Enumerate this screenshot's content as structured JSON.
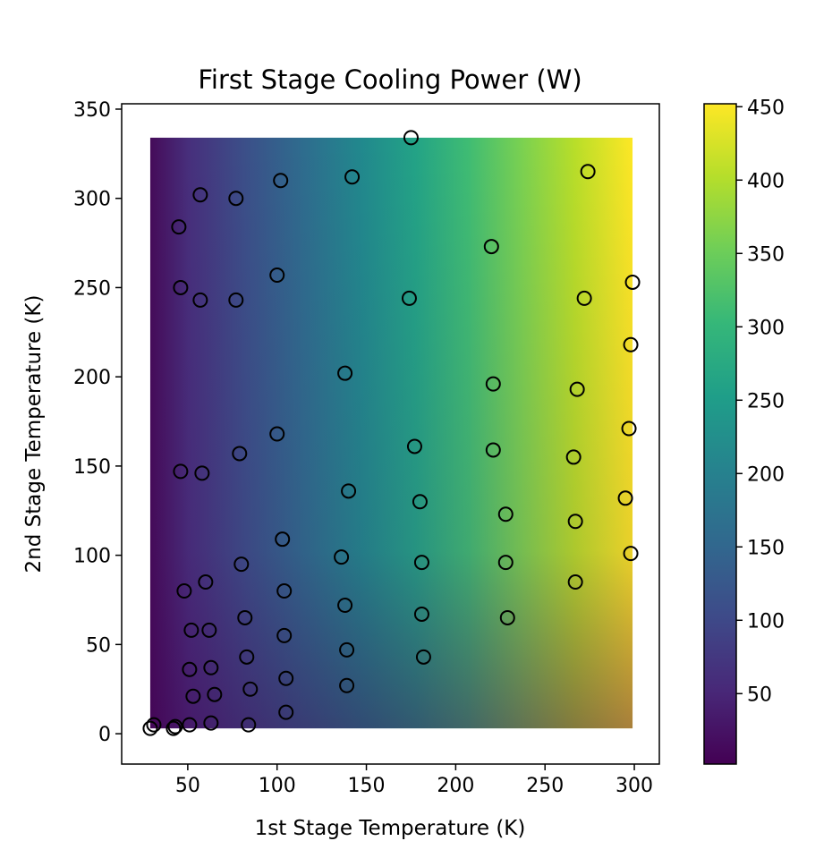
{
  "chart_data": {
    "type": "scatter",
    "title": "First Stage Cooling Power (W)",
    "xlabel": "1st Stage Temperature (K)",
    "ylabel": "2nd Stage Temperature (K)",
    "xlim": [
      13,
      314
    ],
    "ylim": [
      -17,
      353
    ],
    "xticks": [
      "50",
      "100",
      "150",
      "200",
      "250",
      "300"
    ],
    "yticks": [
      "0",
      "50",
      "100",
      "150",
      "200",
      "250",
      "300",
      "350"
    ],
    "contour": {
      "x_range": [
        29,
        299
      ],
      "y_range": [
        3,
        334
      ],
      "colormap": "viridis"
    },
    "colorbar": {
      "range": [
        2,
        452
      ],
      "ticks": [
        "50",
        "100",
        "150",
        "200",
        "250",
        "300",
        "350",
        "400",
        "450"
      ]
    },
    "marker_style": {
      "edge_color": "#000000",
      "fill": "none"
    },
    "points": [
      {
        "x": 175,
        "y": 334
      },
      {
        "x": 274,
        "y": 315
      },
      {
        "x": 142,
        "y": 312
      },
      {
        "x": 102,
        "y": 310
      },
      {
        "x": 57,
        "y": 302
      },
      {
        "x": 77,
        "y": 300
      },
      {
        "x": 45,
        "y": 284
      },
      {
        "x": 220,
        "y": 273
      },
      {
        "x": 100,
        "y": 257
      },
      {
        "x": 299,
        "y": 253
      },
      {
        "x": 46,
        "y": 250
      },
      {
        "x": 174,
        "y": 244
      },
      {
        "x": 272,
        "y": 244
      },
      {
        "x": 57,
        "y": 243
      },
      {
        "x": 77,
        "y": 243
      },
      {
        "x": 298,
        "y": 218
      },
      {
        "x": 138,
        "y": 202
      },
      {
        "x": 221,
        "y": 196
      },
      {
        "x": 268,
        "y": 193
      },
      {
        "x": 297,
        "y": 171
      },
      {
        "x": 100,
        "y": 168
      },
      {
        "x": 177,
        "y": 161
      },
      {
        "x": 221,
        "y": 159
      },
      {
        "x": 79,
        "y": 157
      },
      {
        "x": 266,
        "y": 155
      },
      {
        "x": 46,
        "y": 147
      },
      {
        "x": 58,
        "y": 146
      },
      {
        "x": 140,
        "y": 136
      },
      {
        "x": 295,
        "y": 132
      },
      {
        "x": 180,
        "y": 130
      },
      {
        "x": 228,
        "y": 123
      },
      {
        "x": 267,
        "y": 119
      },
      {
        "x": 103,
        "y": 109
      },
      {
        "x": 298,
        "y": 101
      },
      {
        "x": 136,
        "y": 99
      },
      {
        "x": 181,
        "y": 96
      },
      {
        "x": 228,
        "y": 96
      },
      {
        "x": 80,
        "y": 95
      },
      {
        "x": 267,
        "y": 85
      },
      {
        "x": 60,
        "y": 85
      },
      {
        "x": 48,
        "y": 80
      },
      {
        "x": 104,
        "y": 80
      },
      {
        "x": 138,
        "y": 72
      },
      {
        "x": 181,
        "y": 67
      },
      {
        "x": 229,
        "y": 65
      },
      {
        "x": 82,
        "y": 65
      },
      {
        "x": 52,
        "y": 58
      },
      {
        "x": 62,
        "y": 58
      },
      {
        "x": 104,
        "y": 55
      },
      {
        "x": 139,
        "y": 47
      },
      {
        "x": 83,
        "y": 43
      },
      {
        "x": 182,
        "y": 43
      },
      {
        "x": 63,
        "y": 37
      },
      {
        "x": 51,
        "y": 36
      },
      {
        "x": 105,
        "y": 31
      },
      {
        "x": 139,
        "y": 27
      },
      {
        "x": 85,
        "y": 25
      },
      {
        "x": 65,
        "y": 22
      },
      {
        "x": 53,
        "y": 21
      },
      {
        "x": 105,
        "y": 12
      },
      {
        "x": 63,
        "y": 6
      },
      {
        "x": 84,
        "y": 5
      },
      {
        "x": 51,
        "y": 5
      },
      {
        "x": 31,
        "y": 5
      },
      {
        "x": 43,
        "y": 4
      },
      {
        "x": 29,
        "y": 3
      },
      {
        "x": 42,
        "y": 3
      }
    ]
  }
}
